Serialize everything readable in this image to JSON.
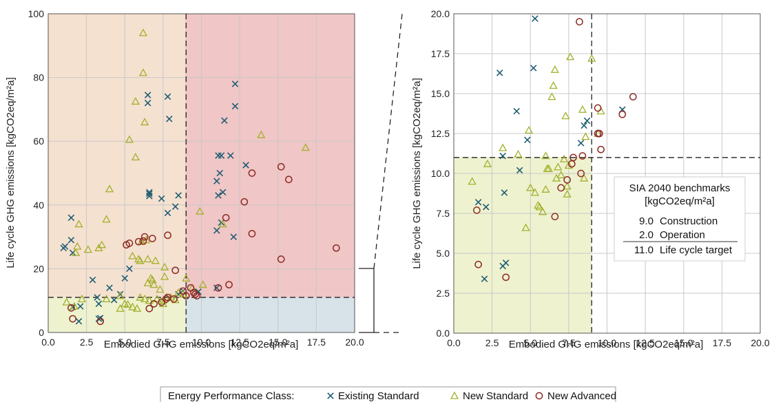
{
  "colors": {
    "existing": "#1f5d73",
    "new_standard": "#a3b02a",
    "new_advanced": "#8c2a24",
    "zone_orange": "#f5e1d0",
    "zone_red": "#f0c6c6",
    "zone_green": "#eef2cf",
    "zone_blue": "#d7e3e8",
    "grid": "#c8c8c8"
  },
  "legend": {
    "title": "Energy Performance Class:",
    "items": [
      {
        "key": "existing",
        "label": "Existing Standard",
        "marker": "x"
      },
      {
        "key": "new_standard",
        "label": "New Standard",
        "marker": "triangle"
      },
      {
        "key": "new_advanced",
        "label": "New Advanced",
        "marker": "circle"
      }
    ]
  },
  "benchmarks": {
    "title_line1": "SIA 2040 benchmarks",
    "title_line2": "[kgCO2eq/m²a]",
    "rows": [
      {
        "value": "9.0",
        "label": "Construction"
      },
      {
        "value": "2.0",
        "label": "Operation"
      },
      {
        "value": "11.0",
        "label": "Life cycle target"
      }
    ]
  },
  "chart_data": [
    {
      "type": "scatter",
      "xlabel": "Embodied GHG emissions [kgCO2eq/m²a]",
      "ylabel": "Life cycle GHG emissions [kgCO2eq/m²a]",
      "xlim": [
        0,
        20
      ],
      "ylim": [
        0,
        100
      ],
      "xticks": [
        "0.0",
        "2.5",
        "5.0",
        "7.5",
        "10.0",
        "12.5",
        "15.0",
        "17.5",
        "20.0"
      ],
      "yticks": [
        "0",
        "20",
        "40",
        "60",
        "80",
        "100"
      ],
      "xtick_values": [
        0,
        2.5,
        5,
        7.5,
        10,
        12.5,
        15,
        17.5,
        20
      ],
      "ytick_values": [
        0,
        20,
        40,
        60,
        80,
        100
      ],
      "grid": true,
      "benchmark_x": 9.0,
      "benchmark_y": 11.0,
      "series": [
        {
          "name": "Existing Standard",
          "key": "existing",
          "points": [
            [
              1.0,
              26.5
            ],
            [
              1.1,
              27.0
            ],
            [
              1.5,
              36.0
            ],
            [
              1.5,
              29.0
            ],
            [
              1.6,
              25.0
            ],
            [
              1.6,
              8.0
            ],
            [
              2.0,
              3.5
            ],
            [
              2.1,
              8.2
            ],
            [
              2.9,
              16.5
            ],
            [
              3.2,
              11.0
            ],
            [
              3.3,
              9.0
            ],
            [
              3.3,
              4.3
            ],
            [
              3.4,
              4.5
            ],
            [
              4.0,
              14.0
            ],
            [
              4.3,
              10.2
            ],
            [
              4.7,
              12.0
            ],
            [
              5.0,
              17.0
            ],
            [
              5.3,
              20.0
            ],
            [
              6.5,
              74.5
            ],
            [
              6.5,
              72.0
            ],
            [
              6.6,
              44.0
            ],
            [
              6.6,
              43.5
            ],
            [
              6.6,
              42.8
            ],
            [
              7.8,
              74.0
            ],
            [
              7.9,
              67.0
            ],
            [
              7.4,
              42.0
            ],
            [
              7.8,
              37.5
            ],
            [
              8.5,
              43.0
            ],
            [
              8.3,
              39.5
            ],
            [
              8.5,
              12.0
            ],
            [
              8.8,
              13.0
            ],
            [
              11.0,
              47.5
            ],
            [
              11.1,
              55.5
            ],
            [
              11.2,
              50.0
            ],
            [
              11.1,
              43.0
            ],
            [
              11.4,
              44.0
            ],
            [
              11.3,
              55.5
            ],
            [
              11.5,
              66.5
            ],
            [
              11.9,
              55.5
            ],
            [
              12.2,
              78.0
            ],
            [
              12.2,
              71.0
            ],
            [
              12.1,
              30.0
            ],
            [
              12.9,
              52.5
            ],
            [
              11.0,
              32.0
            ],
            [
              11.3,
              34.5
            ],
            [
              9.8,
              12.8
            ],
            [
              11.0,
              14.0
            ]
          ]
        },
        {
          "name": "New Standard",
          "key": "new_standard",
          "points": [
            [
              1.2,
              9.5
            ],
            [
              1.7,
              8.2
            ],
            [
              1.8,
              25.0
            ],
            [
              1.9,
              27.0
            ],
            [
              2.0,
              34.0
            ],
            [
              2.2,
              10.5
            ],
            [
              2.6,
              26.0
            ],
            [
              3.3,
              26.5
            ],
            [
              3.5,
              27.5
            ],
            [
              3.8,
              35.5
            ],
            [
              3.8,
              10.5
            ],
            [
              4.0,
              45.0
            ],
            [
              4.7,
              11.5
            ],
            [
              4.7,
              7.5
            ],
            [
              5.0,
              9.0
            ],
            [
              5.2,
              8.8
            ],
            [
              5.3,
              60.5
            ],
            [
              5.5,
              8.0
            ],
            [
              5.5,
              24.0
            ],
            [
              5.7,
              55.0
            ],
            [
              5.7,
              72.5
            ],
            [
              5.8,
              7.5
            ],
            [
              5.9,
              23.0
            ],
            [
              6.0,
              22.5
            ],
            [
              6.0,
              11.0
            ],
            [
              6.1,
              28.5
            ],
            [
              6.2,
              94.0
            ],
            [
              6.2,
              81.5
            ],
            [
              6.3,
              66.0
            ],
            [
              6.3,
              10.5
            ],
            [
              6.4,
              29.0
            ],
            [
              6.5,
              23.0
            ],
            [
              6.5,
              15.5
            ],
            [
              6.6,
              10.0
            ],
            [
              6.7,
              17.0
            ],
            [
              6.8,
              16.5
            ],
            [
              6.9,
              15.0
            ],
            [
              7.0,
              22.5
            ],
            [
              7.1,
              10.5
            ],
            [
              7.3,
              13.5
            ],
            [
              7.5,
              9.0
            ],
            [
              7.5,
              10.0
            ],
            [
              7.6,
              17.5
            ],
            [
              7.6,
              20.5
            ],
            [
              7.7,
              11.0
            ],
            [
              8.3,
              10.2
            ],
            [
              8.5,
              12.5
            ],
            [
              8.8,
              12.0
            ],
            [
              9.0,
              17.0
            ],
            [
              9.4,
              14.0
            ],
            [
              9.9,
              38.0
            ],
            [
              11.4,
              34.0
            ],
            [
              13.9,
              62.0
            ],
            [
              16.8,
              58.0
            ],
            [
              10.1,
              15.0
            ],
            [
              8.0,
              11.0
            ]
          ]
        },
        {
          "name": "New Advanced",
          "key": "new_advanced",
          "points": [
            [
              1.5,
              7.7
            ],
            [
              1.6,
              4.3
            ],
            [
              3.4,
              3.5
            ],
            [
              5.1,
              27.5
            ],
            [
              5.3,
              28.0
            ],
            [
              5.9,
              28.5
            ],
            [
              6.2,
              28.7
            ],
            [
              6.3,
              30.0
            ],
            [
              6.8,
              29.5
            ],
            [
              6.6,
              7.5
            ],
            [
              6.9,
              9.0
            ],
            [
              7.4,
              9.5
            ],
            [
              7.7,
              10.5
            ],
            [
              7.8,
              11.0
            ],
            [
              7.8,
              30.5
            ],
            [
              8.2,
              10.5
            ],
            [
              8.3,
              19.5
            ],
            [
              8.8,
              13.0
            ],
            [
              9.0,
              11.5
            ],
            [
              9.3,
              14.0
            ],
            [
              9.5,
              12.5
            ],
            [
              9.6,
              12.0
            ],
            [
              9.7,
              11.5
            ],
            [
              11.6,
              36.0
            ],
            [
              11.8,
              15.0
            ],
            [
              11.1,
              14.0
            ],
            [
              12.8,
              41.0
            ],
            [
              13.3,
              31.0
            ],
            [
              13.3,
              50.0
            ],
            [
              15.2,
              52.0
            ],
            [
              15.7,
              48.0
            ],
            [
              15.2,
              23.0
            ],
            [
              18.8,
              26.5
            ]
          ]
        }
      ]
    },
    {
      "type": "scatter",
      "xlabel": "Embodied GHG emissions [kgCO2eq/m²a]",
      "ylabel": "Life cycle GHG emissions [kgCO2eq/m²a]",
      "xlim": [
        0,
        20
      ],
      "ylim": [
        0,
        20
      ],
      "xticks": [
        "0.0",
        "2.5",
        "5.0",
        "7.5",
        "10.0",
        "12.5",
        "15.0",
        "17.5",
        "20.0"
      ],
      "yticks": [
        "0.0",
        "2.5",
        "5.0",
        "7.5",
        "10.0",
        "12.5",
        "15.0",
        "17.5",
        "20.0"
      ],
      "xtick_values": [
        0,
        2.5,
        5,
        7.5,
        10,
        12.5,
        15,
        17.5,
        20
      ],
      "ytick_values": [
        0,
        2.5,
        5,
        7.5,
        10,
        12.5,
        15,
        17.5,
        20
      ],
      "grid": true,
      "benchmark_x": 9.0,
      "benchmark_y": 11.0,
      "series": [
        {
          "name": "Existing Standard",
          "key": "existing",
          "points": [
            [
              1.6,
              8.2
            ],
            [
              2.0,
              3.4
            ],
            [
              2.1,
              7.9
            ],
            [
              3.0,
              16.3
            ],
            [
              3.2,
              11.1
            ],
            [
              3.2,
              4.2
            ],
            [
              3.3,
              8.8
            ],
            [
              3.4,
              4.4
            ],
            [
              4.1,
              13.9
            ],
            [
              4.3,
              10.2
            ],
            [
              4.8,
              12.1
            ],
            [
              5.2,
              16.6
            ],
            [
              5.3,
              19.7
            ],
            [
              8.3,
              11.9
            ],
            [
              8.5,
              13.0
            ],
            [
              8.7,
              13.3
            ],
            [
              11.0,
              14.0
            ]
          ]
        },
        {
          "name": "New Standard",
          "key": "new_standard",
          "points": [
            [
              1.2,
              9.5
            ],
            [
              2.2,
              10.6
            ],
            [
              3.2,
              11.6
            ],
            [
              4.2,
              11.2
            ],
            [
              4.7,
              6.6
            ],
            [
              4.9,
              12.7
            ],
            [
              5.0,
              9.1
            ],
            [
              5.3,
              8.8
            ],
            [
              5.5,
              8.0
            ],
            [
              5.6,
              7.9
            ],
            [
              5.8,
              7.6
            ],
            [
              6.0,
              11.1
            ],
            [
              6.0,
              9.0
            ],
            [
              6.1,
              10.3
            ],
            [
              6.2,
              10.3
            ],
            [
              6.4,
              14.8
            ],
            [
              6.5,
              15.5
            ],
            [
              6.6,
              16.5
            ],
            [
              6.7,
              9.7
            ],
            [
              6.8,
              10.4
            ],
            [
              7.0,
              9.9
            ],
            [
              7.2,
              10.9
            ],
            [
              7.3,
              13.6
            ],
            [
              7.4,
              9.2
            ],
            [
              7.4,
              8.7
            ],
            [
              7.5,
              10.5
            ],
            [
              7.6,
              17.3
            ],
            [
              8.4,
              14.0
            ],
            [
              8.5,
              9.7
            ],
            [
              8.6,
              12.3
            ],
            [
              9.0,
              17.2
            ],
            [
              9.4,
              12.5
            ],
            [
              9.6,
              13.9
            ]
          ]
        },
        {
          "name": "New Advanced",
          "key": "new_advanced",
          "points": [
            [
              1.5,
              7.7
            ],
            [
              1.6,
              4.3
            ],
            [
              3.4,
              3.5
            ],
            [
              6.6,
              7.3
            ],
            [
              7.0,
              9.1
            ],
            [
              7.4,
              9.6
            ],
            [
              7.7,
              10.6
            ],
            [
              7.8,
              11.0
            ],
            [
              8.2,
              19.5
            ],
            [
              8.4,
              11.1
            ],
            [
              8.3,
              10.0
            ],
            [
              9.4,
              14.1
            ],
            [
              9.4,
              12.5
            ],
            [
              9.5,
              12.5
            ],
            [
              9.6,
              11.5
            ],
            [
              11.0,
              13.7
            ],
            [
              11.7,
              14.8
            ]
          ]
        }
      ]
    }
  ]
}
